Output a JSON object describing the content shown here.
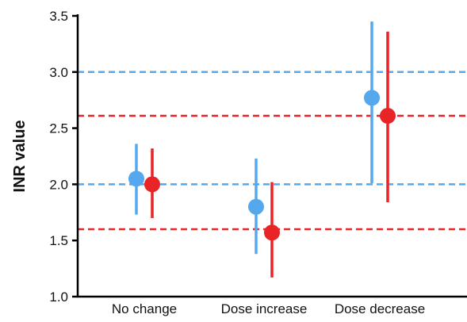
{
  "chart_data": {
    "type": "scatter",
    "ylabel": "INR value",
    "ylim": [
      1.0,
      3.5
    ],
    "yticks": [
      "1.0",
      "1.5",
      "2.0",
      "2.5",
      "3.0",
      "3.5"
    ],
    "yticks_values": [
      1.0,
      1.5,
      2.0,
      2.5,
      3.0,
      3.5
    ],
    "categories": [
      "No change",
      "Dose increase",
      "Dose decrease"
    ],
    "series": [
      {
        "color": "#55A8EE",
        "values": [
          2.05,
          1.8,
          2.77
        ],
        "lower": [
          1.73,
          1.38,
          2.01
        ],
        "upper": [
          2.36,
          2.23,
          3.45
        ]
      },
      {
        "color": "#E82426",
        "values": [
          2.0,
          1.57,
          2.61
        ],
        "lower": [
          1.7,
          1.17,
          1.84
        ],
        "upper": [
          2.32,
          2.02,
          3.36
        ]
      }
    ],
    "reference_lines": [
      {
        "value": 3.0,
        "color": "#55A8EE"
      },
      {
        "value": 2.0,
        "color": "#55A8EE"
      },
      {
        "value": 2.61,
        "color": "#E82426"
      },
      {
        "value": 1.6,
        "color": "#E82426"
      }
    ],
    "grid": false,
    "legend": "none"
  }
}
